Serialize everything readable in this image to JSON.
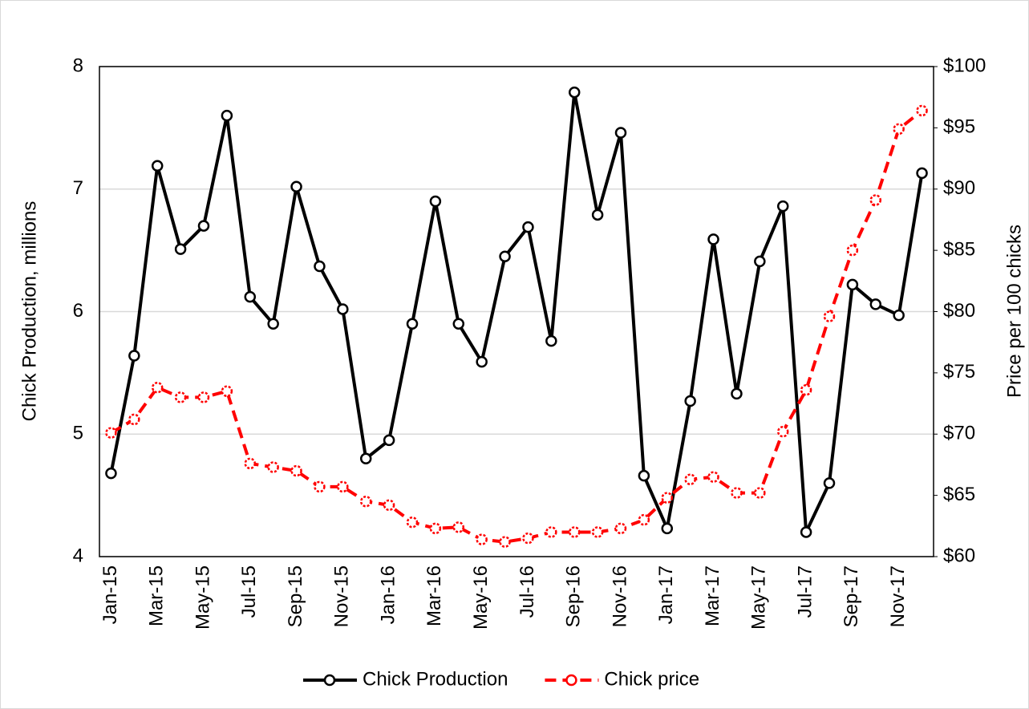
{
  "chart_data": {
    "type": "line",
    "categories": [
      "Jan-15",
      null,
      "Mar-15",
      null,
      "May-15",
      null,
      "Jul-15",
      null,
      "Sep-15",
      null,
      "Nov-15",
      null,
      "Jan-16",
      null,
      "Mar-16",
      null,
      "May-16",
      null,
      "Jul-16",
      null,
      "Sep-16",
      null,
      "Nov-16",
      null,
      "Jan-17",
      null,
      "Mar-17",
      null,
      "May-17",
      null,
      "Jul-17",
      null,
      "Sep-17",
      null,
      "Nov-17",
      null
    ],
    "y_label": "Chick Production, millions",
    "y2_label": "Price per 100 chicks",
    "ylim": [
      4,
      8
    ],
    "yticks": [
      4,
      5,
      6,
      7,
      8
    ],
    "y2lim": [
      60,
      100
    ],
    "y2ticks": [
      {
        "value": 60,
        "label": "$60"
      },
      {
        "value": 65,
        "label": "$65"
      },
      {
        "value": 70,
        "label": "$70"
      },
      {
        "value": 75,
        "label": "$75"
      },
      {
        "value": 80,
        "label": "$80"
      },
      {
        "value": 85,
        "label": "$85"
      },
      {
        "value": 90,
        "label": "$90"
      },
      {
        "value": 95,
        "label": "$95"
      },
      {
        "value": 100,
        "label": "$100"
      }
    ],
    "grid": true,
    "legend": "bottom",
    "series": [
      {
        "name": "Chick Production",
        "color": "#000000",
        "dash": false,
        "values": [
          4.68,
          5.64,
          7.19,
          6.51,
          6.7,
          7.6,
          6.12,
          5.9,
          7.02,
          6.37,
          6.02,
          4.8,
          4.95,
          5.9,
          6.9,
          5.9,
          5.59,
          6.45,
          6.69,
          5.76,
          7.79,
          6.79,
          7.46,
          4.66,
          4.23,
          5.27,
          6.59,
          5.33,
          6.41,
          6.86,
          4.2,
          4.6,
          6.22,
          6.06,
          5.97,
          7.13
        ]
      },
      {
        "name": "Chick price",
        "color": "#ff0000",
        "dash": true,
        "axis": "y2",
        "values": [
          70.1,
          71.2,
          73.8,
          73.0,
          73.0,
          73.5,
          67.6,
          67.3,
          67.0,
          65.7,
          65.7,
          64.5,
          64.2,
          62.8,
          62.3,
          62.4,
          61.4,
          61.2,
          61.5,
          62.0,
          62.0,
          62.0,
          62.3,
          63.0,
          64.8,
          66.3,
          66.5,
          65.2,
          65.2,
          70.2,
          73.6,
          79.6,
          85.0,
          89.1,
          94.9,
          96.4
        ]
      }
    ]
  }
}
